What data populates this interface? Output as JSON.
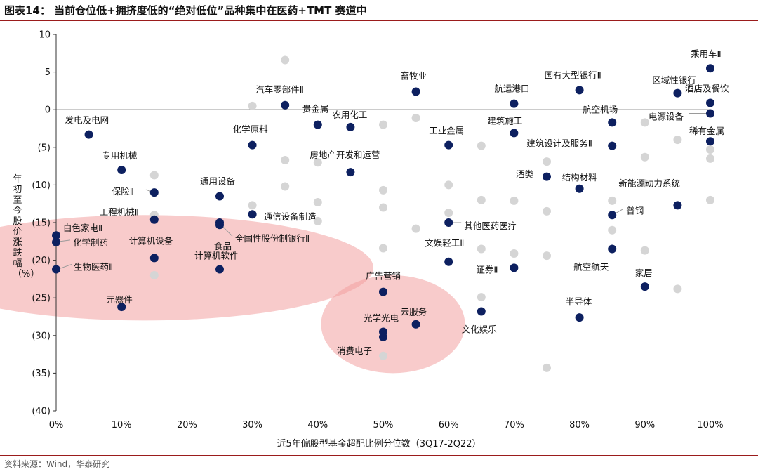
{
  "title": "图表14：  当前仓位低+拥挤度低的“绝对低位”品种集中在医药+TMT 赛道中",
  "source": "资料来源：Wind，华泰研究",
  "colors": {
    "accent": "#9b1c1c",
    "highlight": "#0d2060",
    "background_point": "#d5d5d5",
    "ellipse": "#f2a0a0"
  },
  "chart_data": {
    "type": "scatter",
    "xlabel": "近5年偏股型基金超配比例分位数（3Q17-2Q22）",
    "ylabel": "年初至今股价涨跌幅（%）",
    "xlim": [
      0,
      100
    ],
    "ylim": [
      -40,
      10
    ],
    "x_ticks": [
      0,
      10,
      20,
      30,
      40,
      50,
      60,
      70,
      80,
      90,
      100
    ],
    "x_tick_labels": [
      "0%",
      "10%",
      "20%",
      "30%",
      "40%",
      "50%",
      "60%",
      "70%",
      "80%",
      "90%",
      "100%"
    ],
    "y_ticks": [
      10,
      5,
      0,
      -5,
      -10,
      -15,
      -20,
      -25,
      -30,
      -35,
      -40
    ],
    "y_tick_labels": [
      "10",
      "5",
      "0",
      "(5)",
      "(10)",
      "(15)",
      "(20)",
      "(25)",
      "(30)",
      "(35)",
      "(40)"
    ],
    "grid": false,
    "zero_line": true,
    "highlight_regions": [
      {
        "center": [
          13.5,
          -21
        ],
        "radius": [
          35,
          7
        ]
      },
      {
        "center": [
          51.5,
          -28.5
        ],
        "radius": [
          11,
          6.5
        ]
      }
    ],
    "labeled_points": [
      {
        "name": "乘用车Ⅱ",
        "x": 100,
        "y": 5.5
      },
      {
        "name": "区域性银行",
        "x": 95,
        "y": 2.2
      },
      {
        "name": "酒店及餐饮",
        "x": 100,
        "y": 0.9
      },
      {
        "name": "电源设备",
        "x": 100,
        "y": -0.5
      },
      {
        "name": "稀有金属",
        "x": 100,
        "y": -4.2
      },
      {
        "name": "国有大型银行Ⅱ",
        "x": 80,
        "y": 2.6
      },
      {
        "name": "航空机场",
        "x": 85,
        "y": -1.7
      },
      {
        "name": "建筑设计及服务Ⅱ",
        "x": 85,
        "y": -4.8
      },
      {
        "name": "新能源动力系统",
        "x": 95,
        "y": -12.7
      },
      {
        "name": "普钢",
        "x": 85,
        "y": -14
      },
      {
        "name": "航空航天",
        "x": 85,
        "y": -18.5
      },
      {
        "name": "家居",
        "x": 90,
        "y": -23.5
      },
      {
        "name": "半导体",
        "x": 80,
        "y": -27.6
      },
      {
        "name": "航运港口",
        "x": 70,
        "y": 0.8
      },
      {
        "name": "建筑施工",
        "x": 70,
        "y": -3.1
      },
      {
        "name": "结构材料",
        "x": 80,
        "y": -10.5
      },
      {
        "name": "酒类",
        "x": 75,
        "y": -8.9
      },
      {
        "name": "证券Ⅱ",
        "x": 70,
        "y": -21
      },
      {
        "name": "畜牧业",
        "x": 55,
        "y": 2.4
      },
      {
        "name": "工业金属",
        "x": 60,
        "y": -4.7
      },
      {
        "name": "其他医药医疗",
        "x": 60,
        "y": -15
      },
      {
        "name": "文娱轻工Ⅱ",
        "x": 60,
        "y": -20.2
      },
      {
        "name": "文化娱乐",
        "x": 65,
        "y": -26.8
      },
      {
        "name": "广告营销",
        "x": 50,
        "y": -24.2
      },
      {
        "name": "云服务",
        "x": 55,
        "y": -28.5
      },
      {
        "name": "光学光电",
        "x": 50,
        "y": -29.5
      },
      {
        "name": "消费电子",
        "x": 50,
        "y": -30.2
      },
      {
        "name": "汽车零部件Ⅱ",
        "x": 35,
        "y": 0.6
      },
      {
        "name": "贵金属",
        "x": 40,
        "y": -2
      },
      {
        "name": "农用化工",
        "x": 45,
        "y": -2.3
      },
      {
        "name": "房地产开发和运营",
        "x": 45,
        "y": -8.3
      },
      {
        "name": "化学原料",
        "x": 30,
        "y": -4.7
      },
      {
        "name": "通信设备制造",
        "x": 30,
        "y": -13.9
      },
      {
        "name": "通用设备",
        "x": 25,
        "y": -11.5
      },
      {
        "name": "食品",
        "x": 25,
        "y": -15
      },
      {
        "name": "全国性股份制银行Ⅱ",
        "x": 25,
        "y": -15.3
      },
      {
        "name": "计算机软件",
        "x": 25,
        "y": -21.2
      },
      {
        "name": "计算机设备",
        "x": 15,
        "y": -19.7
      },
      {
        "name": "工程机械Ⅱ",
        "x": 15,
        "y": -14.6
      },
      {
        "name": "保险Ⅱ",
        "x": 15,
        "y": -11
      },
      {
        "name": "专用机械",
        "x": 10,
        "y": -8
      },
      {
        "name": "元器件",
        "x": 10,
        "y": -26.2
      },
      {
        "name": "发电及电网",
        "x": 5,
        "y": -3.3
      },
      {
        "name": "白色家电Ⅱ",
        "x": 0,
        "y": -16.7
      },
      {
        "name": "化学制药",
        "x": 0,
        "y": -17.6
      },
      {
        "name": "生物医药Ⅱ",
        "x": 0,
        "y": -21.2
      }
    ],
    "other_points": [
      {
        "x": 35,
        "y": 6.6
      },
      {
        "x": 30,
        "y": 0.5
      },
      {
        "x": 35,
        "y": -6.7
      },
      {
        "x": 35,
        "y": -10.2
      },
      {
        "x": 40,
        "y": -7
      },
      {
        "x": 40,
        "y": -12.3
      },
      {
        "x": 40,
        "y": -14.8
      },
      {
        "x": 30,
        "y": -12.7
      },
      {
        "x": 15,
        "y": -8.7
      },
      {
        "x": 15,
        "y": -14
      },
      {
        "x": 15,
        "y": -22
      },
      {
        "x": 50,
        "y": -2
      },
      {
        "x": 50,
        "y": -10.7
      },
      {
        "x": 50,
        "y": -13
      },
      {
        "x": 50,
        "y": -18.4
      },
      {
        "x": 50,
        "y": -32.7
      },
      {
        "x": 55,
        "y": -1.1
      },
      {
        "x": 55,
        "y": -15.8
      },
      {
        "x": 60,
        "y": -10
      },
      {
        "x": 60,
        "y": -13.7
      },
      {
        "x": 65,
        "y": -4.8
      },
      {
        "x": 65,
        "y": -12
      },
      {
        "x": 65,
        "y": -18.5
      },
      {
        "x": 65,
        "y": -24.9
      },
      {
        "x": 70,
        "y": -12.1
      },
      {
        "x": 70,
        "y": -19.1
      },
      {
        "x": 75,
        "y": -6.9
      },
      {
        "x": 75,
        "y": -13.5
      },
      {
        "x": 75,
        "y": -19.4
      },
      {
        "x": 75,
        "y": -34.3
      },
      {
        "x": 85,
        "y": -12.1
      },
      {
        "x": 85,
        "y": -16
      },
      {
        "x": 90,
        "y": -1.7
      },
      {
        "x": 90,
        "y": -6.3
      },
      {
        "x": 90,
        "y": -9.8
      },
      {
        "x": 90,
        "y": -18.7
      },
      {
        "x": 95,
        "y": -4
      },
      {
        "x": 95,
        "y": -23.8
      },
      {
        "x": 100,
        "y": -5.3
      },
      {
        "x": 100,
        "y": -6.5
      },
      {
        "x": 100,
        "y": -12
      }
    ]
  }
}
